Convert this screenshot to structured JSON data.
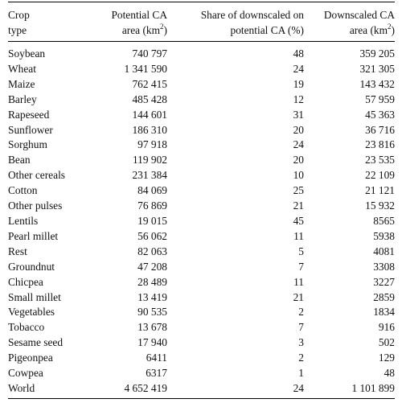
{
  "header": {
    "col0": [
      "Crop",
      "type"
    ],
    "col1": [
      "Potential CA",
      "area (km",
      "2",
      ")"
    ],
    "col2": [
      "Share of downscaled on",
      "potential CA (%)"
    ],
    "col3": [
      "Downscaled CA",
      "area (km",
      "2",
      ")"
    ]
  },
  "rows": [
    {
      "crop": "Soybean",
      "potential": "740 797",
      "share": "48",
      "downscaled": "359 205"
    },
    {
      "crop": "Wheat",
      "potential": "1 341 590",
      "share": "24",
      "downscaled": "321 305"
    },
    {
      "crop": "Maize",
      "potential": "762 415",
      "share": "19",
      "downscaled": "143 432"
    },
    {
      "crop": "Barley",
      "potential": "485 428",
      "share": "12",
      "downscaled": "57 959"
    },
    {
      "crop": "Rapeseed",
      "potential": "144 601",
      "share": "31",
      "downscaled": "45 363"
    },
    {
      "crop": "Sunflower",
      "potential": "186 310",
      "share": "20",
      "downscaled": "36 716"
    },
    {
      "crop": "Sorghum",
      "potential": "97 918",
      "share": "24",
      "downscaled": "23 816"
    },
    {
      "crop": "Bean",
      "potential": "119 902",
      "share": "20",
      "downscaled": "23 535"
    },
    {
      "crop": "Other cereals",
      "potential": "231 384",
      "share": "10",
      "downscaled": "22 109"
    },
    {
      "crop": "Cotton",
      "potential": "84 069",
      "share": "25",
      "downscaled": "21 121"
    },
    {
      "crop": "Other pulses",
      "potential": "76 869",
      "share": "21",
      "downscaled": "15 932"
    },
    {
      "crop": "Lentils",
      "potential": "19 015",
      "share": "45",
      "downscaled": "8565"
    },
    {
      "crop": "Pearl millet",
      "potential": "56 062",
      "share": "11",
      "downscaled": "5938"
    },
    {
      "crop": "Rest",
      "potential": "82 063",
      "share": "5",
      "downscaled": "4081"
    },
    {
      "crop": "Groundnut",
      "potential": "47 208",
      "share": "7",
      "downscaled": "3308"
    },
    {
      "crop": "Chicpea",
      "potential": "28 489",
      "share": "11",
      "downscaled": "3227"
    },
    {
      "crop": "Small millet",
      "potential": "13 419",
      "share": "21",
      "downscaled": "2859"
    },
    {
      "crop": "Vegetables",
      "potential": "90 535",
      "share": "2",
      "downscaled": "1834"
    },
    {
      "crop": "Tobacco",
      "potential": "13 678",
      "share": "7",
      "downscaled": "916"
    },
    {
      "crop": "Sesame seed",
      "potential": "17 940",
      "share": "3",
      "downscaled": "502"
    },
    {
      "crop": "Pigeonpea",
      "potential": "6411",
      "share": "2",
      "downscaled": "129"
    },
    {
      "crop": "Cowpea",
      "potential": "6317",
      "share": "1",
      "downscaled": "48"
    },
    {
      "crop": "World",
      "potential": "4 652 419",
      "share": "24",
      "downscaled": "1 101 899"
    }
  ]
}
